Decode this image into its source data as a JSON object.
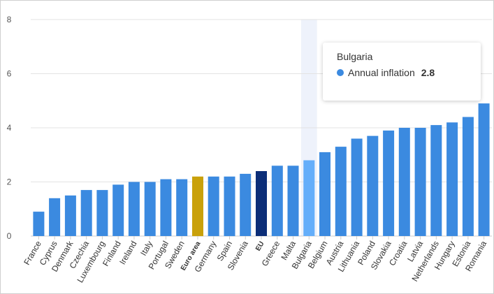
{
  "chart_data": {
    "type": "bar",
    "title": "",
    "xlabel": "",
    "ylabel": "",
    "ylim": [
      0,
      8
    ],
    "yticks": [
      0,
      2,
      4,
      6,
      8
    ],
    "grid": true,
    "categories": [
      "France",
      "Cyprus",
      "Denmark",
      "Czechia",
      "Luxembourg",
      "Finland",
      "Ireland",
      "Italy",
      "Portugal",
      "Sweden",
      "Euro area",
      "Germany",
      "Spain",
      "Slovenia",
      "EU",
      "Greece",
      "Malta",
      "Bulgaria",
      "Belgium",
      "Austria",
      "Lithuania",
      "Poland",
      "Slovakia",
      "Croatia",
      "Latvia",
      "Netherlands",
      "Hungary",
      "Estonia",
      "Romania"
    ],
    "series": [
      {
        "name": "Annual inflation",
        "values": [
          0.9,
          1.4,
          1.5,
          1.7,
          1.7,
          1.9,
          2.0,
          2.0,
          2.1,
          2.1,
          2.2,
          2.2,
          2.2,
          2.3,
          2.4,
          2.6,
          2.6,
          2.8,
          3.1,
          3.3,
          3.6,
          3.7,
          3.9,
          4.0,
          4.0,
          4.1,
          4.2,
          4.4,
          4.9
        ]
      }
    ],
    "bold_categories": [
      "Euro area",
      "EU"
    ],
    "colors": {
      "default": "#3b8ae0",
      "euro_area": "#c9a10a",
      "eu": "#0c2e78",
      "hovered": "#64aefa",
      "hover_band": "#eef2fb",
      "grid": "#e3e3e3"
    },
    "highlighted_category": "Bulgaria"
  },
  "tooltip": {
    "title": "Bulgaria",
    "series_name": "Annual inflation",
    "value": "2.8",
    "dot_color": "#3b8ae0"
  }
}
